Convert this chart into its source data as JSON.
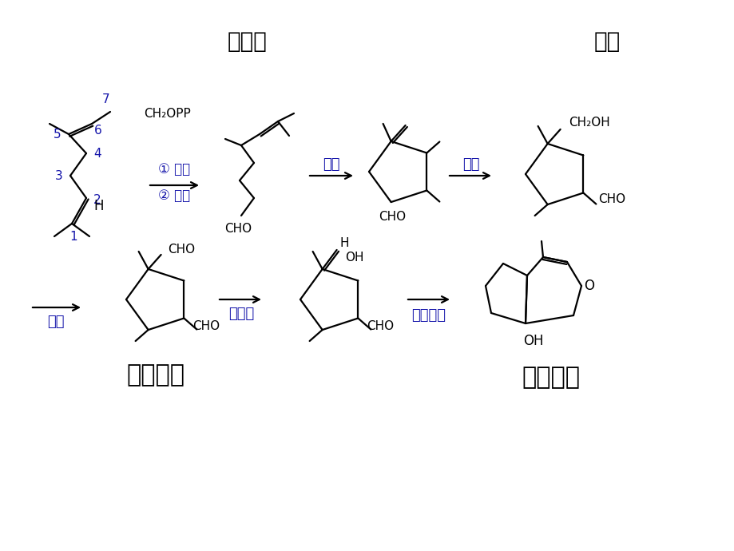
{
  "bg": "#ffffff",
  "blk": "#000000",
  "blu": "#1414AA",
  "t1": "香茅醛",
  "t2": "伯醇",
  "t3": "臭蚁二醛",
  "t4": "环烯醚萜",
  "a1": "① 水解",
  "a2": "② 氧化",
  "a3": "环合",
  "a4": "水合",
  "a5": "氧化",
  "a6": "烯醇化",
  "a7": "羟醛缩合"
}
